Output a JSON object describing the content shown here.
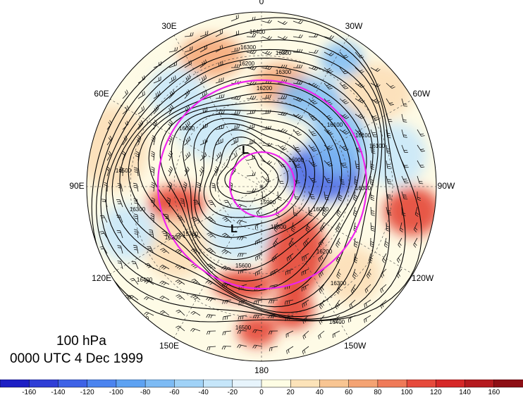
{
  "title": {
    "level": "100 hPa",
    "time": "0000 UTC 4 Dec 1999"
  },
  "longitude_labels": [
    {
      "text": "0",
      "angle": 0
    },
    {
      "text": "30W",
      "angle": 30
    },
    {
      "text": "60W",
      "angle": 60
    },
    {
      "text": "90W",
      "angle": 90
    },
    {
      "text": "120W",
      "angle": 120
    },
    {
      "text": "150W",
      "angle": 150
    },
    {
      "text": "180",
      "angle": 180
    },
    {
      "text": "150E",
      "angle": 210
    },
    {
      "text": "120E",
      "angle": 240
    },
    {
      "text": "90E",
      "angle": 270
    },
    {
      "text": "60E",
      "angle": 300
    },
    {
      "text": "30E",
      "angle": 330
    }
  ],
  "contour_labels": [
    "16400",
    "16300",
    "16300",
    "16200",
    "16300",
    "16200",
    "16100",
    "16000",
    "16000",
    "15900",
    "15800",
    "16100",
    "16000",
    "16200",
    "16300",
    "16400",
    "16500",
    "16500",
    "16300",
    "16200",
    "16400",
    "16500",
    "16600",
    "15600",
    "15700",
    "16300",
    "16100"
  ],
  "lows": [
    "L",
    "L"
  ],
  "colorbar": {
    "ticks": [
      "-160",
      "-140",
      "-120",
      "-100",
      "-80",
      "-60",
      "-40",
      "-20",
      "0",
      "20",
      "40",
      "60",
      "80",
      "100",
      "120",
      "140",
      "160"
    ],
    "colors": [
      "#1d1fc4",
      "#2f3ed6",
      "#3e62e6",
      "#4b84ef",
      "#5da2f2",
      "#7dbbf4",
      "#a0d2f7",
      "#c6e6fa",
      "#e7f4fc",
      "#fefde4",
      "#fce3b9",
      "#f8c592",
      "#f4a373",
      "#ef7a58",
      "#e64a3c",
      "#d62828",
      "#b51a1f",
      "#8d0f15"
    ]
  },
  "field": {
    "colors": {
      "strong_positive": "#e3392b",
      "positive": "#f4a373",
      "weak_positive": "#fbdcb4",
      "weak_negative": "#c6e6fa",
      "negative": "#7dbbf4",
      "strong_negative": "#3e62e6",
      "contour": "#000000",
      "circle": "#ee22ee"
    }
  }
}
